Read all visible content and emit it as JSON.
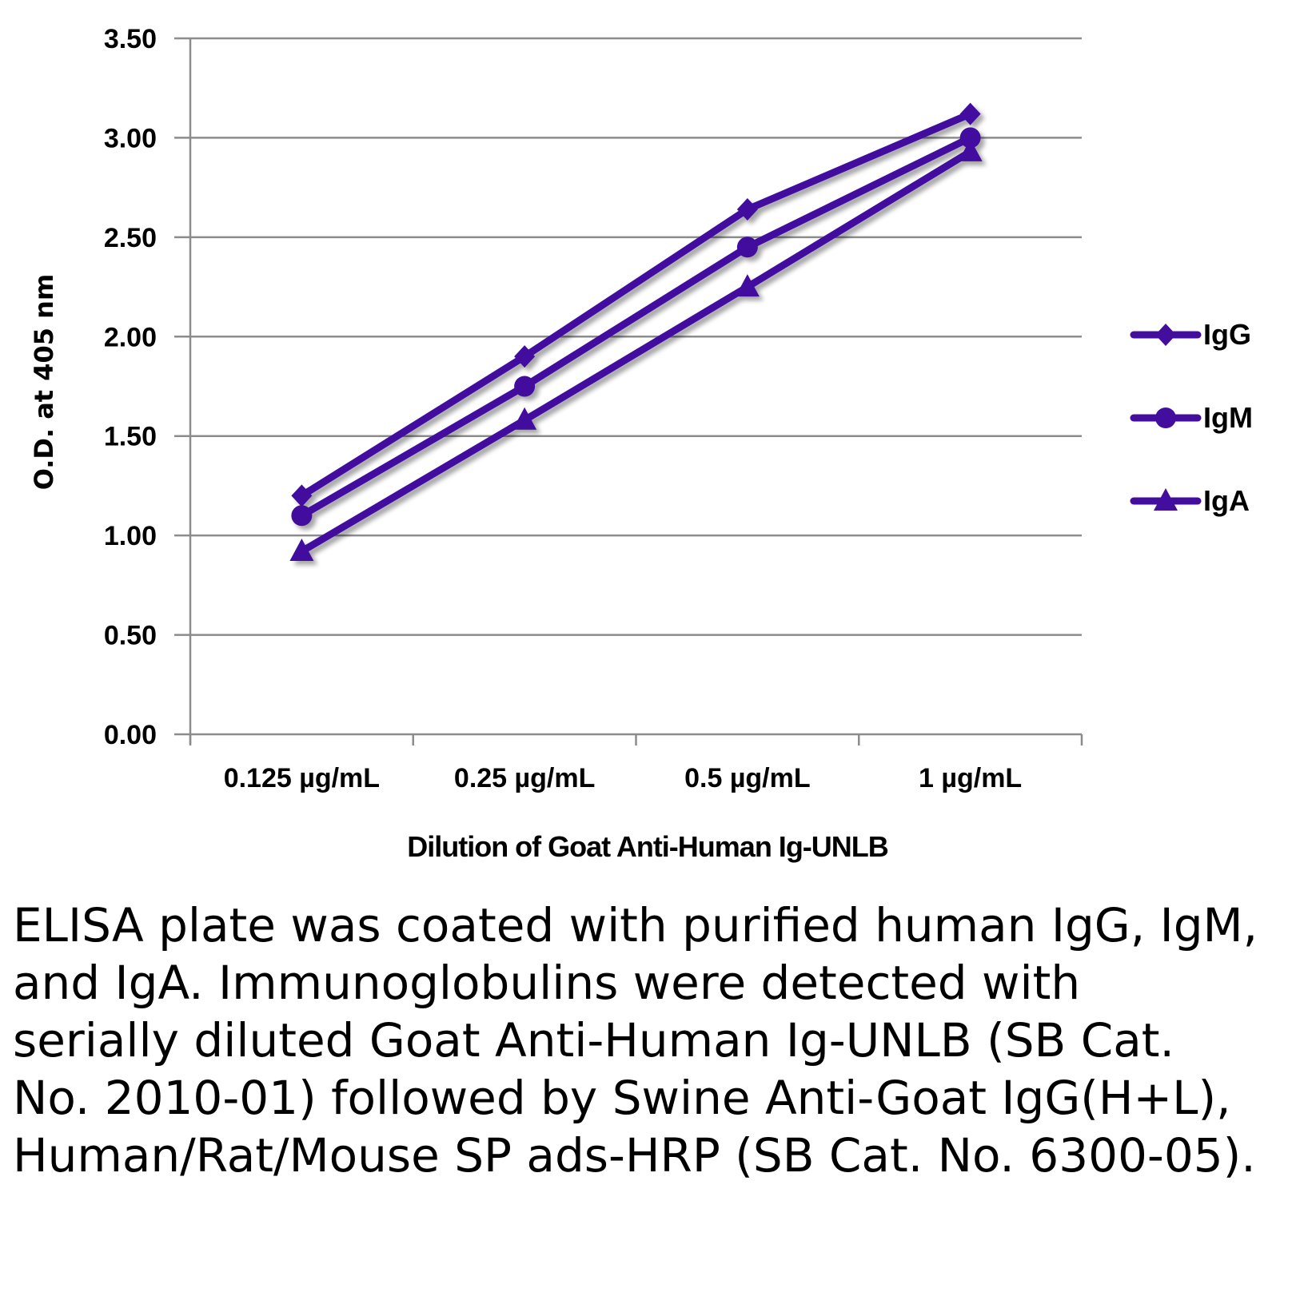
{
  "chart_data": {
    "type": "line",
    "categories": [
      "0.125 µg/mL",
      "0.25 µg/mL",
      "0.5 µg/mL",
      "1 µg/mL"
    ],
    "series": [
      {
        "name": "IgG",
        "marker": "diamond",
        "values": [
          1.2,
          1.9,
          2.64,
          3.12
        ]
      },
      {
        "name": "IgM",
        "marker": "circle",
        "values": [
          1.1,
          1.75,
          2.45,
          3.0
        ]
      },
      {
        "name": "IgA",
        "marker": "triangle",
        "values": [
          0.92,
          1.58,
          2.25,
          2.93
        ]
      }
    ],
    "xlabel": "Dilution of Goat Anti-Human Ig-UNLB",
    "ylabel": "O.D. at 405 nm",
    "ylim": [
      0,
      3.5
    ],
    "yticks": [
      "0.00",
      "0.50",
      "1.00",
      "1.50",
      "2.00",
      "2.50",
      "3.00",
      "3.50"
    ],
    "grid": true,
    "legend": "right",
    "color": "#430d9e"
  },
  "caption": "ELISA plate was coated with purified human IgG, IgM, and IgA.  Immunoglobulins were detected with serially diluted Goat Anti-Human Ig-UNLB (SB Cat. No. 2010-01) followed by Swine Anti-Goat IgG(H+L), Human/Rat/Mouse SP ads-HRP (SB Cat. No. 6300-05)."
}
